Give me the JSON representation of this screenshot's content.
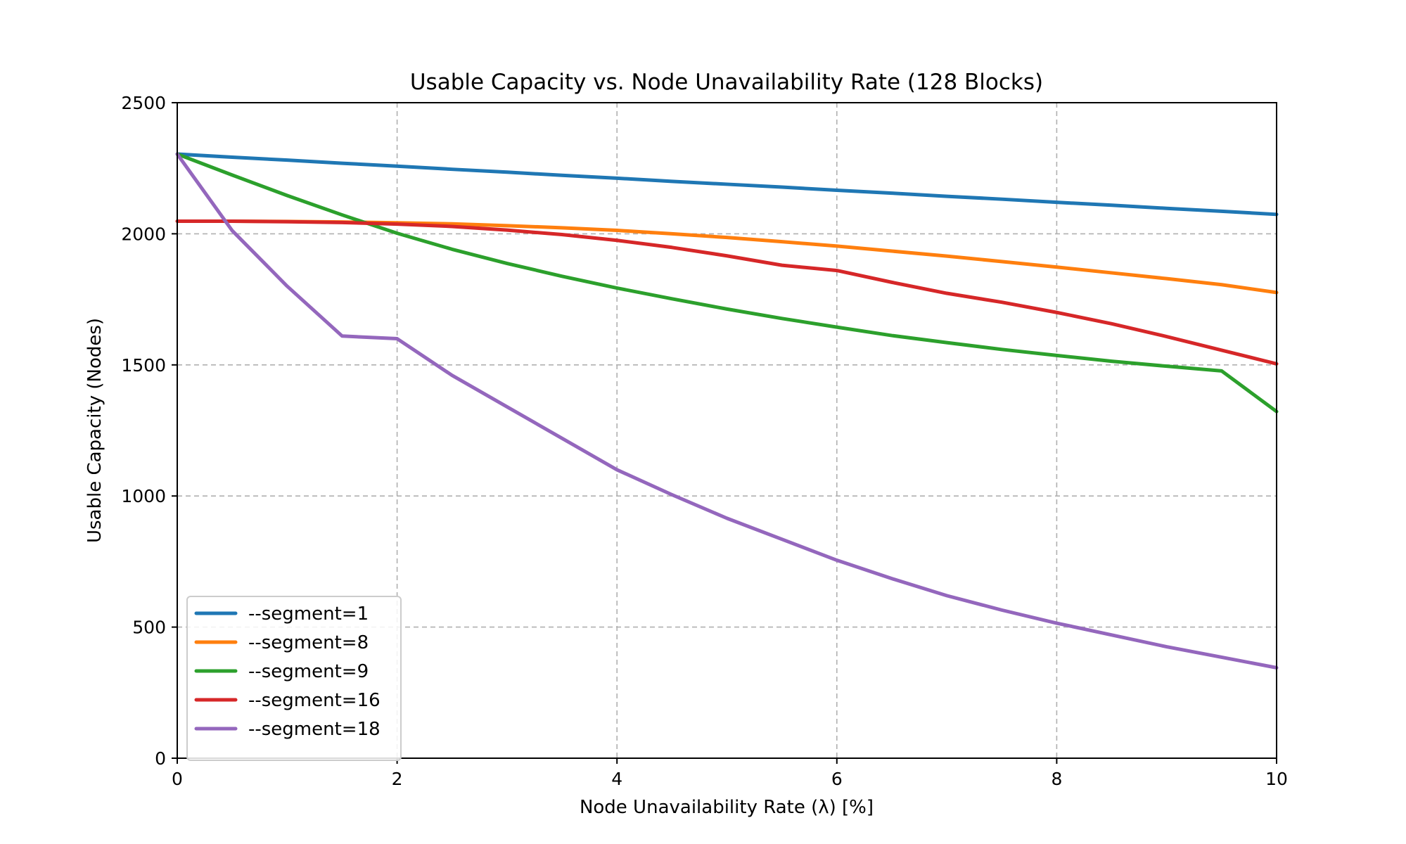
{
  "chart_data": {
    "type": "line",
    "title": "Usable Capacity vs. Node Unavailability Rate (128 Blocks)",
    "xlabel": "Node Unavailability Rate (λ) [%]",
    "ylabel": "Usable Capacity (Nodes)",
    "xlim": [
      0,
      10
    ],
    "ylim": [
      0,
      2500
    ],
    "xticks": [
      0,
      2,
      4,
      6,
      8,
      10
    ],
    "yticks": [
      0,
      500,
      1000,
      1500,
      2000,
      2500
    ],
    "xtick_labels": [
      "0",
      "2",
      "4",
      "6",
      "8",
      "10"
    ],
    "ytick_labels": [
      "0",
      "500",
      "1000",
      "1500",
      "2000",
      "2500"
    ],
    "grid": true,
    "legend_position": "lower-left",
    "x": [
      0,
      0.5,
      1,
      1.5,
      2,
      2.5,
      3,
      3.5,
      4,
      4.5,
      5,
      5.5,
      6,
      6.5,
      7,
      7.5,
      8,
      8.5,
      9,
      9.5,
      10
    ],
    "series": [
      {
        "name": "--segment=1",
        "color": "#1f77b4",
        "values": [
          2304,
          2292,
          2281,
          2269,
          2258,
          2246,
          2235,
          2223,
          2212,
          2200,
          2189,
          2178,
          2166,
          2155,
          2143,
          2132,
          2120,
          2109,
          2097,
          2086,
          2074
        ]
      },
      {
        "name": "--segment=8",
        "color": "#ff7f0e",
        "values": [
          2048,
          2048,
          2047,
          2045,
          2042,
          2038,
          2031,
          2023,
          2013,
          2000,
          1986,
          1970,
          1953,
          1934,
          1915,
          1894,
          1873,
          1851,
          1829,
          1806,
          1776
        ]
      },
      {
        "name": "--segment=9",
        "color": "#2ca02c",
        "values": [
          2304,
          2224,
          2146,
          2072,
          2002,
          1941,
          1887,
          1838,
          1793,
          1752,
          1713,
          1677,
          1644,
          1612,
          1585,
          1559,
          1536,
          1514,
          1495,
          1477,
          1322
        ]
      },
      {
        "name": "--segment=16",
        "color": "#d62728",
        "values": [
          2048,
          2048,
          2046,
          2043,
          2037,
          2028,
          2014,
          1997,
          1975,
          1948,
          1916,
          1880,
          1860,
          1815,
          1773,
          1739,
          1700,
          1657,
          1608,
          1556,
          1504
        ]
      },
      {
        "name": "--segment=18",
        "color": "#9467bd",
        "values": [
          2304,
          2012,
          1800,
          1610,
          1600,
          1460,
          1340,
          1220,
          1100,
          1005,
          915,
          835,
          755,
          685,
          620,
          565,
          515,
          470,
          425,
          385,
          345
        ]
      }
    ]
  }
}
